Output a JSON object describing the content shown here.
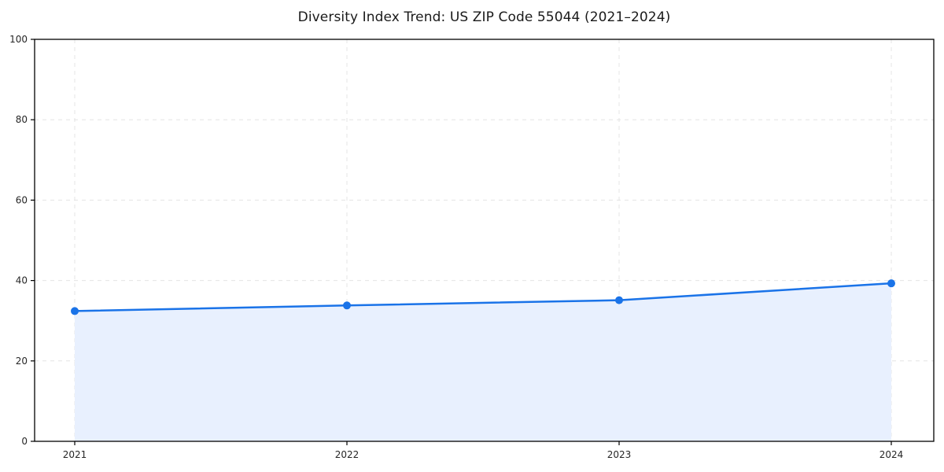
{
  "chart_data": {
    "type": "line",
    "title": "Diversity Index Trend: US ZIP Code 55044 (2021–2024)",
    "categories": [
      "2021",
      "2022",
      "2023",
      "2024"
    ],
    "series": [
      {
        "name": "Diversity Index",
        "values": [
          32.4,
          33.8,
          35.1,
          39.3
        ]
      }
    ],
    "xlabel": "",
    "ylabel": "",
    "ylim": [
      0,
      100
    ],
    "yticks": [
      0,
      20,
      40,
      60,
      80,
      100
    ],
    "grid": "dashed-both-axes",
    "legend_position": "none",
    "area_fill": true,
    "marker": "circle",
    "colors": {
      "line": "#1a73e8",
      "marker": "#1a73e8",
      "fill": "#e8f0fe",
      "grid": "#e4e4e4",
      "axis": "#000000",
      "tick_text": "#262626",
      "title_text": "#1a1a1a",
      "background": "#ffffff"
    }
  }
}
